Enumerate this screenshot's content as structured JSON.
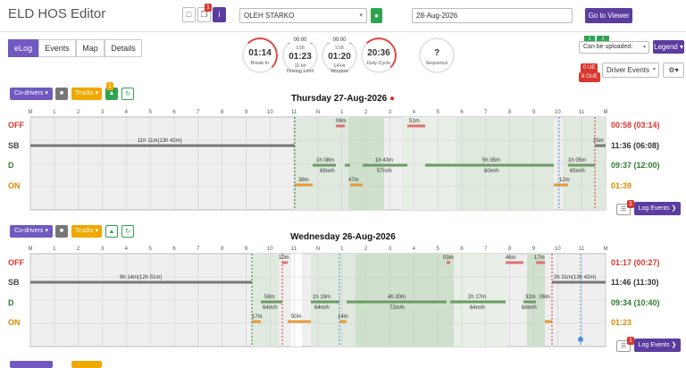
{
  "app": {
    "title": "ELD HOS Editor"
  },
  "toolbar": {
    "doc_badge": "1",
    "driver": "OLEH STARKO",
    "date": "28-Aug-2026",
    "go_viewer": "Go to Viewer",
    "legend": "Legend",
    "can_upload": "Can be uploaded:",
    "driver_events": "Driver Events",
    "ue_badge": "0 UE",
    "oue_badge": "6 OUE",
    "status_icons": [
      "1",
      "2"
    ]
  },
  "tabs": [
    "eLog",
    "Events",
    "Map",
    "Details"
  ],
  "gauges": [
    {
      "value": "01:14",
      "label": "Break In",
      "top": ""
    },
    {
      "value": "01:23",
      "label": "11 Hr\nDriving Limit",
      "top": "00:00",
      "sub": "SSB"
    },
    {
      "value": "01:20",
      "label": "14 Hr\nWindow",
      "top": "00:00",
      "sub": "SSB"
    },
    {
      "value": "20:36",
      "label": "Duty Cycle",
      "top": ""
    },
    {
      "value": "?",
      "label": "Sequence",
      "top": ""
    }
  ],
  "days": [
    {
      "title": "Thursday 27-Aug-2026",
      "codrivers": "Co-drivers",
      "trucks": "Trucks",
      "truck_badge": "1",
      "ticks": [
        "M",
        "1",
        "2",
        "3",
        "4",
        "5",
        "6",
        "7",
        "8",
        "9",
        "10",
        "11",
        "N",
        "1",
        "2",
        "3",
        "4",
        "5",
        "6",
        "7",
        "8",
        "9",
        "10",
        "11",
        "M"
      ],
      "rows": [
        "OFF",
        "SB",
        "D",
        "ON"
      ],
      "totals": [
        "00:58 (03:14)",
        "11:36 (06:08)",
        "09:37 (12:00)",
        "01:39"
      ],
      "labels": [
        "11h 11m(13h 42m)",
        "06m",
        "51m",
        "25m",
        "1h 08m",
        "69m/h",
        "1h 43m",
        "57m/h",
        "5h 35m",
        "60m/h",
        "1h 05m",
        "65m/h",
        "38m",
        "47m",
        "12m"
      ],
      "log_events": "Log Events",
      "comment_badge": "1"
    },
    {
      "title": "Wednesday 26-Aug-2026",
      "codrivers": "Co-drivers",
      "trucks": "Trucks",
      "ticks": [
        "M",
        "1",
        "2",
        "3",
        "4",
        "5",
        "6",
        "7",
        "8",
        "9",
        "10",
        "11",
        "N",
        "1",
        "2",
        "3",
        "4",
        "5",
        "6",
        "7",
        "8",
        "9",
        "10",
        "11",
        "M"
      ],
      "rows": [
        "OFF",
        "SB",
        "D",
        "ON"
      ],
      "totals": [
        "01:17 (00:27)",
        "11:46 (11:30)",
        "09:34 (10:40)",
        "01:23"
      ],
      "labels": [
        "9h 14m(12h 51m)",
        "10m",
        "03m",
        "46m",
        "17m",
        "58m",
        "64m/h",
        "50m",
        "1h 19m",
        "64m/h",
        "4h 20m",
        "72m/h",
        "2h 17m",
        "64m/h",
        "32m",
        "68m/h",
        "06m",
        "17m",
        "14m",
        "2h 31m(13h 42m)"
      ],
      "log_events": "Log Events",
      "comment_badge": "1"
    }
  ]
}
